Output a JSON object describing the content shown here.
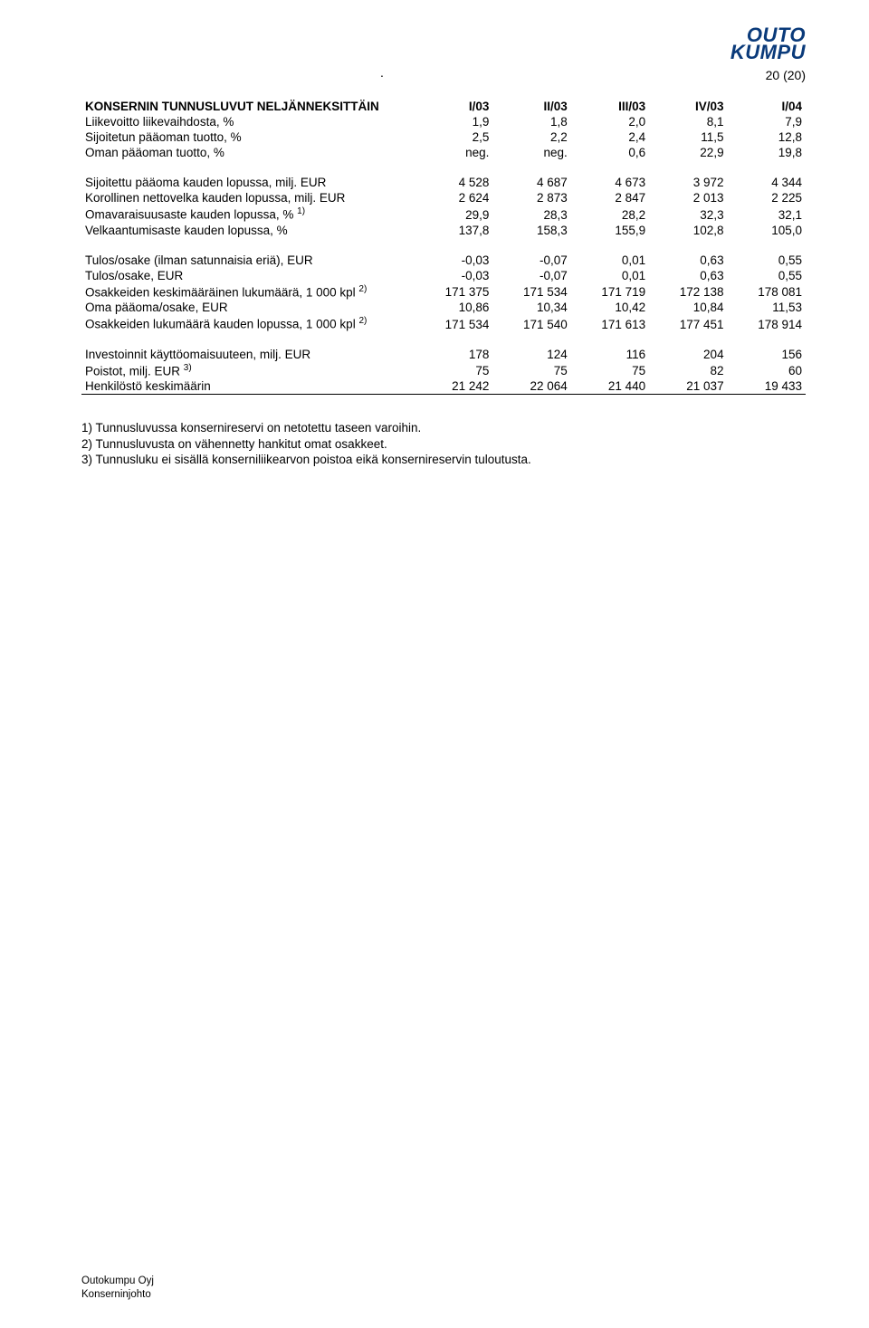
{
  "header": {
    "dot": ".",
    "logo_line1": "OUTO",
    "logo_line2": "KUMPU",
    "page_num": "20 (20)"
  },
  "table": {
    "title": "KONSERNIN TUNNUSLUVUT NELJÄNNEKSITTÄIN",
    "cols": [
      "I/03",
      "II/03",
      "III/03",
      "IV/03",
      "I/04"
    ],
    "col_widths": [
      "46%",
      "10.8%",
      "10.8%",
      "10.8%",
      "10.8%",
      "10.8%"
    ],
    "rows_block1": [
      {
        "label": "Liikevoitto liikevaihdosta, %",
        "v": [
          "1,9",
          "1,8",
          "2,0",
          "8,1",
          "7,9"
        ]
      },
      {
        "label": "Sijoitetun pääoman tuotto, %",
        "v": [
          "2,5",
          "2,2",
          "2,4",
          "11,5",
          "12,8"
        ]
      },
      {
        "label": "Oman pääoman tuotto, %",
        "v": [
          "neg.",
          "neg.",
          "0,6",
          "22,9",
          "19,8"
        ]
      }
    ],
    "rows_block2": [
      {
        "label": "Sijoitettu pääoma kauden lopussa, milj. EUR",
        "v": [
          "4 528",
          "4 687",
          "4 673",
          "3 972",
          "4 344"
        ]
      },
      {
        "label": "Korollinen nettovelka kauden lopussa, milj. EUR",
        "v": [
          "2 624",
          "2 873",
          "2 847",
          "2 013",
          "2 225"
        ]
      },
      {
        "label_html": "Omavaraisuusaste kauden lopussa, % <span class=\"sup\">1)</span>",
        "v": [
          "29,9",
          "28,3",
          "28,2",
          "32,3",
          "32,1"
        ]
      },
      {
        "label": "Velkaantumisaste kauden lopussa, %",
        "v": [
          "137,8",
          "158,3",
          "155,9",
          "102,8",
          "105,0"
        ]
      }
    ],
    "rows_block3": [
      {
        "label": "Tulos/osake (ilman satunnaisia eriä), EUR",
        "v": [
          "-0,03",
          "-0,07",
          "0,01",
          "0,63",
          "0,55"
        ]
      },
      {
        "label": "Tulos/osake, EUR",
        "v": [
          "-0,03",
          "-0,07",
          "0,01",
          "0,63",
          "0,55"
        ]
      },
      {
        "label_html": "Osakkeiden keskimääräinen lukumäärä, 1 000 kpl <span class=\"sup\">2)</span>",
        "v": [
          "171 375",
          "171 534",
          "171 719",
          "172 138",
          "178 081"
        ]
      },
      {
        "label": "Oma pääoma/osake, EUR",
        "v": [
          "10,86",
          "10,34",
          "10,42",
          "10,84",
          "11,53"
        ]
      },
      {
        "label_html": "Osakkeiden lukumäärä kauden lopussa, 1 000 kpl <span class=\"sup\">2)</span>",
        "v": [
          "171 534",
          "171 540",
          "171 613",
          "177 451",
          "178 914"
        ]
      }
    ],
    "rows_block4": [
      {
        "label": "Investoinnit käyttöomaisuuteen, milj. EUR",
        "v": [
          "178",
          "124",
          "116",
          "204",
          "156"
        ]
      },
      {
        "label_html": "Poistot, milj. EUR <span class=\"sup\">3)</span>",
        "v": [
          "75",
          "75",
          "75",
          "82",
          "60"
        ]
      },
      {
        "label": "Henkilöstö keskimäärin",
        "v": [
          "21 242",
          "22 064",
          "21 440",
          "21 037",
          "19 433"
        ],
        "underline": true
      }
    ]
  },
  "footnotes": [
    "1) Tunnusluvussa konsernireservi on netotettu taseen varoihin.",
    "2) Tunnusluvusta on vähennetty hankitut omat osakkeet.",
    "3) Tunnusluku ei sisällä konserniliikearvon poistoa eikä konsernireservin tuloutusta."
  ],
  "footer": {
    "line1": "Outokumpu Oyj",
    "line2": "Konserninjohto"
  }
}
